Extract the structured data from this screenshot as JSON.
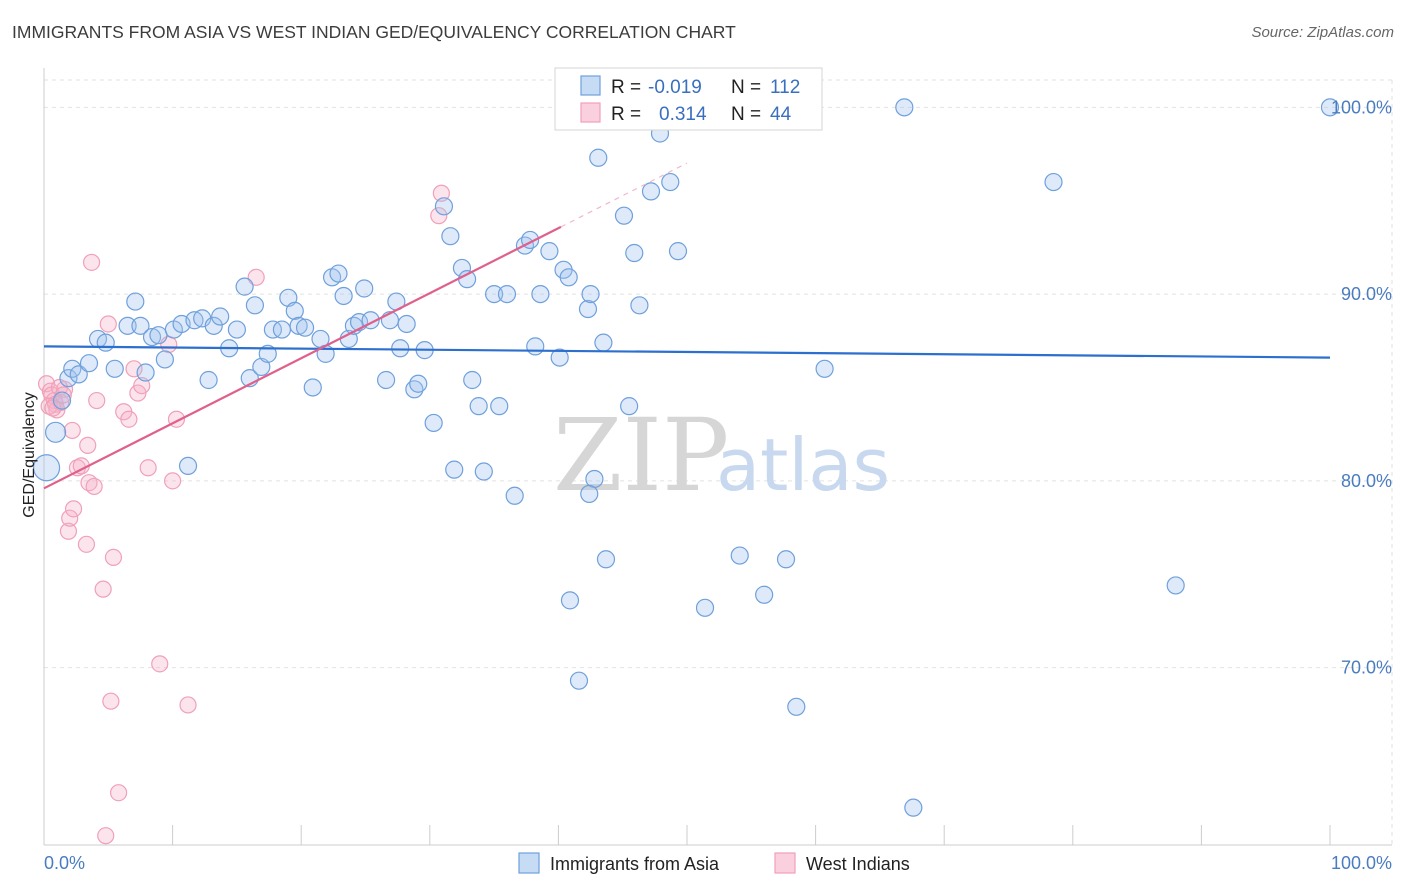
{
  "title": "IMMIGRANTS FROM ASIA VS WEST INDIAN GED/EQUIVALENCY CORRELATION CHART",
  "source": "Source: ZipAtlas.com",
  "watermark": {
    "zip": "ZIP",
    "atlas": "atlas"
  },
  "legend": {
    "r_label": "R =",
    "n_label": "N =",
    "series": [
      {
        "r": "-0.019",
        "n": "112"
      },
      {
        "r": "0.314",
        "n": "44"
      }
    ]
  },
  "chart_data": {
    "type": "scatter",
    "title": "IMMIGRANTS FROM ASIA VS WEST INDIAN GED/EQUIVALENCY CORRELATION CHART",
    "xlabel": "",
    "ylabel": "GED/Equivalency",
    "xlim": [
      0,
      100
    ],
    "ylim": [
      60.5,
      102
    ],
    "x_tick_labels": [
      "0.0%",
      "100.0%"
    ],
    "y_ticks": [
      70,
      80,
      90,
      100
    ],
    "y_tick_labels": [
      "70.0%",
      "80.0%",
      "90.0%",
      "100.0%"
    ],
    "grid": true,
    "legend_position": "top-center",
    "colors": {
      "asia": "#6fa0dc",
      "west": "#f0a0b8",
      "asia_line": "#2c6fce",
      "west_line": "#e0608c"
    },
    "series": [
      {
        "name": "Immigrants from Asia",
        "r": -0.019,
        "n": 112,
        "trend": [
          [
            0,
            87.2
          ],
          [
            100,
            86.6
          ]
        ],
        "points": [
          [
            0.2,
            80.7
          ],
          [
            0.9,
            82.6
          ],
          [
            1.4,
            84.3
          ],
          [
            1.9,
            85.5
          ],
          [
            2.2,
            86.0
          ],
          [
            2.7,
            85.7
          ],
          [
            3.5,
            86.3
          ],
          [
            4.2,
            87.6
          ],
          [
            4.8,
            87.4
          ],
          [
            5.5,
            86.0
          ],
          [
            6.5,
            88.3
          ],
          [
            7.1,
            89.6
          ],
          [
            7.5,
            88.3
          ],
          [
            7.9,
            85.8
          ],
          [
            8.4,
            87.7
          ],
          [
            8.9,
            87.8
          ],
          [
            9.4,
            86.5
          ],
          [
            10.1,
            88.1
          ],
          [
            10.7,
            88.4
          ],
          [
            11.2,
            80.8
          ],
          [
            11.7,
            88.6
          ],
          [
            12.3,
            88.7
          ],
          [
            12.8,
            85.4
          ],
          [
            13.2,
            88.3
          ],
          [
            13.7,
            88.8
          ],
          [
            14.4,
            87.1
          ],
          [
            15.0,
            88.1
          ],
          [
            15.6,
            90.4
          ],
          [
            16.0,
            85.5
          ],
          [
            16.4,
            89.4
          ],
          [
            16.9,
            86.1
          ],
          [
            17.4,
            86.8
          ],
          [
            17.8,
            88.1
          ],
          [
            18.5,
            88.1
          ],
          [
            19.0,
            89.8
          ],
          [
            19.5,
            89.1
          ],
          [
            19.8,
            88.3
          ],
          [
            20.3,
            88.2
          ],
          [
            20.9,
            85.0
          ],
          [
            21.5,
            87.6
          ],
          [
            21.9,
            86.8
          ],
          [
            22.4,
            90.9
          ],
          [
            22.9,
            91.1
          ],
          [
            23.3,
            89.9
          ],
          [
            23.7,
            87.6
          ],
          [
            24.1,
            88.3
          ],
          [
            24.5,
            88.5
          ],
          [
            24.9,
            90.3
          ],
          [
            25.4,
            88.6
          ],
          [
            26.6,
            85.4
          ],
          [
            26.9,
            88.6
          ],
          [
            27.4,
            89.6
          ],
          [
            27.7,
            87.1
          ],
          [
            28.2,
            88.4
          ],
          [
            28.8,
            84.9
          ],
          [
            29.1,
            85.2
          ],
          [
            29.6,
            87.0
          ],
          [
            30.3,
            83.1
          ],
          [
            31.1,
            94.7
          ],
          [
            31.6,
            93.1
          ],
          [
            31.9,
            80.6
          ],
          [
            32.5,
            91.4
          ],
          [
            32.9,
            90.8
          ],
          [
            33.3,
            85.4
          ],
          [
            33.8,
            84.0
          ],
          [
            34.2,
            80.5
          ],
          [
            35.0,
            90.0
          ],
          [
            35.4,
            84.0
          ],
          [
            36.0,
            90.0
          ],
          [
            36.6,
            79.2
          ],
          [
            37.4,
            92.6
          ],
          [
            37.8,
            92.9
          ],
          [
            38.2,
            87.2
          ],
          [
            38.6,
            90.0
          ],
          [
            39.3,
            92.3
          ],
          [
            40.1,
            86.6
          ],
          [
            40.4,
            91.3
          ],
          [
            40.8,
            90.9
          ],
          [
            42.3,
            89.2
          ],
          [
            42.5,
            90.0
          ],
          [
            42.8,
            80.1
          ],
          [
            42.4,
            79.3
          ],
          [
            43.1,
            97.3
          ],
          [
            43.5,
            87.4
          ],
          [
            45.1,
            94.2
          ],
          [
            45.5,
            84.0
          ],
          [
            45.9,
            92.2
          ],
          [
            46.3,
            89.4
          ],
          [
            47.2,
            95.5
          ],
          [
            47.9,
            98.6
          ],
          [
            48.7,
            96.0
          ],
          [
            49.3,
            92.3
          ],
          [
            55.6,
            100.0
          ],
          [
            52.4,
            100.0
          ],
          [
            66.9,
            100.0
          ],
          [
            78.5,
            96.0
          ],
          [
            100.0,
            100.0
          ],
          [
            41.6,
            69.3
          ],
          [
            43.7,
            75.8
          ],
          [
            40.9,
            73.6
          ],
          [
            51.4,
            73.2
          ],
          [
            54.1,
            76.0
          ],
          [
            56.0,
            73.9
          ],
          [
            57.7,
            75.8
          ],
          [
            58.5,
            67.9
          ],
          [
            60.7,
            86.0
          ],
          [
            88.0,
            74.4
          ],
          [
            67.6,
            62.5
          ]
        ]
      },
      {
        "name": "West Indians",
        "r": 0.314,
        "n": 44,
        "trend": [
          [
            0,
            79.6
          ],
          [
            40.2,
            93.6
          ]
        ],
        "points": [
          [
            0.2,
            85.2
          ],
          [
            0.5,
            84.8
          ],
          [
            0.6,
            84.6
          ],
          [
            0.8,
            84.3
          ],
          [
            0.9,
            84.1
          ],
          [
            1.0,
            83.8
          ],
          [
            1.3,
            84.2
          ],
          [
            1.6,
            84.9
          ],
          [
            1.9,
            77.3
          ],
          [
            2.0,
            78.0
          ],
          [
            2.2,
            82.7
          ],
          [
            2.3,
            78.5
          ],
          [
            2.6,
            80.7
          ],
          [
            2.9,
            80.8
          ],
          [
            3.3,
            76.6
          ],
          [
            3.4,
            81.9
          ],
          [
            3.5,
            79.9
          ],
          [
            3.7,
            91.7
          ],
          [
            3.9,
            79.7
          ],
          [
            4.1,
            84.3
          ],
          [
            4.6,
            74.2
          ],
          [
            4.8,
            61.0
          ],
          [
            5.0,
            88.4
          ],
          [
            5.2,
            68.2
          ],
          [
            5.4,
            75.9
          ],
          [
            5.8,
            63.3
          ],
          [
            6.2,
            83.7
          ],
          [
            6.6,
            83.3
          ],
          [
            7.0,
            86.0
          ],
          [
            7.3,
            84.7
          ],
          [
            7.6,
            85.1
          ],
          [
            8.1,
            80.7
          ],
          [
            9.0,
            70.2
          ],
          [
            9.7,
            87.3
          ],
          [
            10.0,
            80.0
          ],
          [
            10.3,
            83.3
          ],
          [
            11.2,
            68.0
          ],
          [
            16.5,
            90.9
          ],
          [
            30.7,
            94.2
          ],
          [
            30.9,
            95.4
          ],
          [
            0.4,
            84.0
          ],
          [
            0.7,
            83.9
          ],
          [
            1.2,
            85.0
          ],
          [
            1.5,
            84.6
          ]
        ]
      }
    ]
  },
  "bottom_legend": {
    "items": [
      {
        "label": "Immigrants from Asia"
      },
      {
        "label": "West Indians"
      }
    ]
  }
}
